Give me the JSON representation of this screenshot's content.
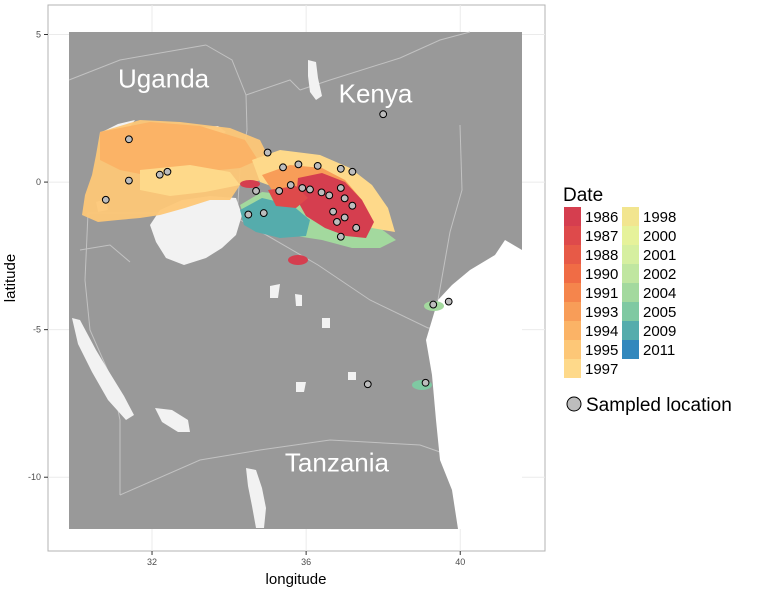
{
  "map": {
    "axes": {
      "xlabel": "longitude",
      "ylabel": "latitude",
      "xticks": [
        32,
        36,
        40
      ],
      "yticks": [
        5,
        0,
        -5,
        -10
      ],
      "xlim": [
        29.3,
        42.2
      ],
      "ylim": [
        -12.5,
        6.0
      ]
    },
    "country_labels": [
      {
        "name": "Uganda",
        "lon": 32.3,
        "lat": 3.2
      },
      {
        "name": "Kenya",
        "lon": 37.8,
        "lat": 2.7
      },
      {
        "name": "Tanzania",
        "lon": 36.8,
        "lat": -9.8
      }
    ],
    "legend": {
      "title": "Date",
      "items": [
        {
          "label": "1986",
          "color": "#d53e4f"
        },
        {
          "label": "1987",
          "color": "#de4a4b"
        },
        {
          "label": "1988",
          "color": "#e75a47"
        },
        {
          "label": "1990",
          "color": "#f06c45"
        },
        {
          "label": "1991",
          "color": "#f5854c"
        },
        {
          "label": "1993",
          "color": "#f89d58"
        },
        {
          "label": "1994",
          "color": "#fbb366"
        },
        {
          "label": "1995",
          "color": "#fdc777"
        },
        {
          "label": "1997",
          "color": "#fed98a"
        },
        {
          "label": "1998",
          "color": "#f2e58f"
        },
        {
          "label": "2000",
          "color": "#e6f29a"
        },
        {
          "label": "2001",
          "color": "#d6efa0"
        },
        {
          "label": "2002",
          "color": "#c0e6a0"
        },
        {
          "label": "2004",
          "color": "#a3d99e"
        },
        {
          "label": "2005",
          "color": "#7fc9a2"
        },
        {
          "label": "2009",
          "color": "#55acac"
        },
        {
          "label": "2011",
          "color": "#3288bd"
        }
      ],
      "point_label": "Sampled location"
    },
    "sampled_locations": [
      [
        31.4,
        1.45
      ],
      [
        31.4,
        0.05
      ],
      [
        32.2,
        0.25
      ],
      [
        32.4,
        0.35
      ],
      [
        30.8,
        -0.6
      ],
      [
        35.0,
        1.0
      ],
      [
        35.4,
        0.5
      ],
      [
        35.8,
        0.6
      ],
      [
        36.3,
        0.55
      ],
      [
        36.9,
        0.45
      ],
      [
        37.2,
        0.35
      ],
      [
        35.3,
        -0.3
      ],
      [
        35.6,
        -0.1
      ],
      [
        35.9,
        -0.2
      ],
      [
        36.1,
        -0.25
      ],
      [
        36.4,
        -0.35
      ],
      [
        36.6,
        -0.45
      ],
      [
        36.9,
        -0.2
      ],
      [
        37.0,
        -0.55
      ],
      [
        37.2,
        -0.8
      ],
      [
        36.7,
        -1.0
      ],
      [
        37.0,
        -1.2
      ],
      [
        36.8,
        -1.35
      ],
      [
        37.3,
        -1.55
      ],
      [
        36.9,
        -1.85
      ],
      [
        34.9,
        -1.05
      ],
      [
        34.7,
        -0.3
      ],
      [
        34.5,
        -1.1
      ],
      [
        38.0,
        2.3
      ],
      [
        39.3,
        -4.15
      ],
      [
        39.7,
        -4.05
      ],
      [
        37.6,
        -6.85
      ],
      [
        39.1,
        -6.8
      ]
    ],
    "colors": {
      "panel": "#ffffff",
      "land": "#999999",
      "border": "#c4c4c4",
      "water": "#f2f2f2",
      "point_fill": "#bdbdbd",
      "point_stroke": "#000000"
    }
  }
}
